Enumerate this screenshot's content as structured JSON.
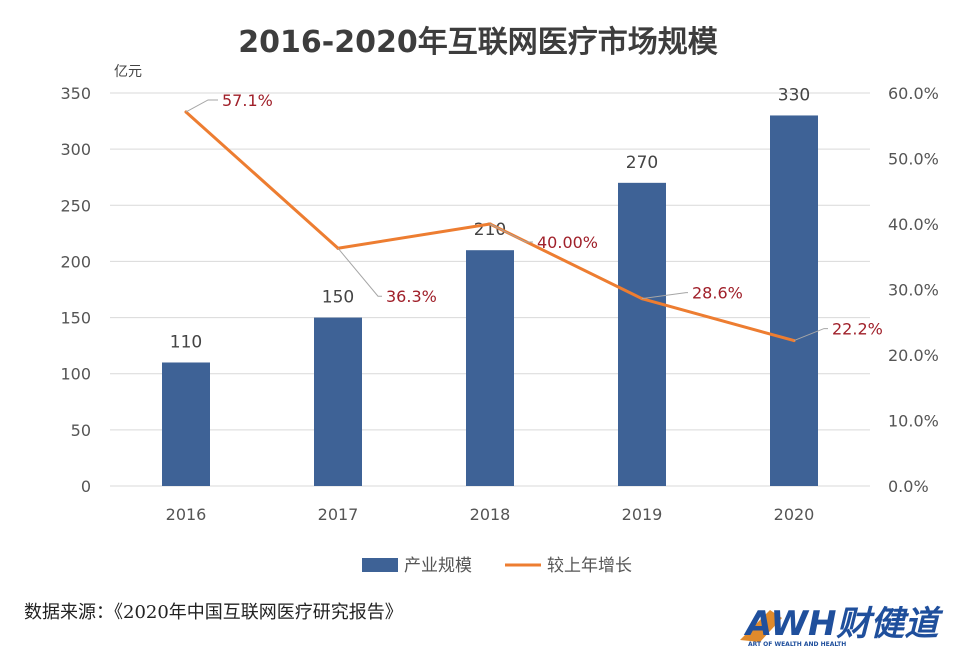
{
  "source_note": "数据来源：《2020年中国互联网医疗研究报告》",
  "logo": {
    "text": "AWH财健道",
    "tagline": "ART OF WEALTH AND HEALTH"
  },
  "colors": {
    "bar": "#3e6296",
    "line": "#ed7d31",
    "rate_label": "#a0202a",
    "grid": "#d9d9d9",
    "logo": "#1f4f9c"
  },
  "chart_data": {
    "type": "bar",
    "title": "2016-2020年互联网医疗市场规模",
    "ylabel": "亿元",
    "categories": [
      "2016",
      "2017",
      "2018",
      "2019",
      "2020"
    ],
    "ylim": [
      0,
      350
    ],
    "y_ticks": [
      "0",
      "50",
      "100",
      "150",
      "200",
      "250",
      "300",
      "350"
    ],
    "y2lim": [
      0,
      0.6
    ],
    "y2_ticks": [
      "0.0%",
      "10.0%",
      "20.0%",
      "30.0%",
      "40.0%",
      "50.0%",
      "60.0%"
    ],
    "grid": true,
    "legend_position": "bottom",
    "series": [
      {
        "name": "产业规模",
        "type": "bar",
        "axis": "left",
        "values": [
          110,
          150,
          210,
          270,
          330
        ],
        "labels": [
          "110",
          "150",
          "210",
          "270",
          "330"
        ]
      },
      {
        "name": "较上年增长",
        "type": "line",
        "axis": "right",
        "values": [
          0.571,
          0.363,
          0.4,
          0.286,
          0.222
        ],
        "labels": [
          "57.1%",
          "36.3%",
          "40.00%",
          "28.6%",
          "22.2%"
        ]
      }
    ]
  }
}
